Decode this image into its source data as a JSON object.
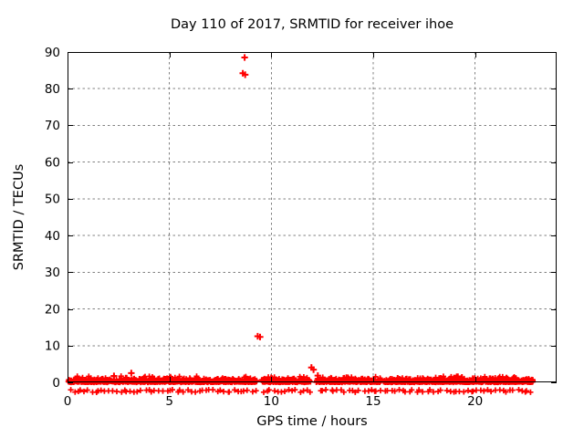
{
  "chart_data": {
    "type": "scatter",
    "title": "Day 110 of 2017, SRMTID for receiver ihoe",
    "xlabel": "GPS time / hours",
    "ylabel": "SRMTID / TECUs",
    "xlim": [
      0,
      24
    ],
    "ylim": [
      0,
      90
    ],
    "xticks": [
      0,
      5,
      10,
      15,
      20
    ],
    "yticks": [
      0,
      10,
      20,
      30,
      40,
      50,
      60,
      70,
      80,
      90
    ],
    "grid": true,
    "legend": "none",
    "marker": "plus",
    "marker_color": "#ff0000",
    "frame_color": "#000000",
    "grid_color": "#808080",
    "series": [
      {
        "name": "SRMTID",
        "outliers": [
          [
            8.69,
            88.5
          ],
          [
            8.6,
            84.2
          ],
          [
            8.72,
            83.8
          ],
          [
            9.33,
            12.55
          ],
          [
            9.45,
            12.35
          ],
          [
            11.97,
            4.05
          ],
          [
            12.07,
            3.45
          ],
          [
            12.28,
            1.85
          ],
          [
            2.28,
            1.75
          ],
          [
            3.13,
            2.5
          ],
          [
            16.2,
            1.1
          ],
          [
            19.35,
            1.35
          ],
          [
            20.75,
            1.0
          ]
        ],
        "noise_band": {
          "description": "dense band of epoch-by-epoch SRMTID values fluctuating about 0 TECU",
          "x_start": 0.03,
          "x_end": 22.85,
          "y_typical": [
            -0.5,
            1.2
          ],
          "y_max_occasional": 1.7,
          "sub_band_y": [
            -2.7,
            -2.0
          ],
          "gaps": [
            [
              9.28,
              9.52
            ],
            [
              11.93,
              12.2
            ],
            [
              15.38,
              15.5
            ]
          ],
          "seed": 42,
          "n_points": 1500,
          "n_sub_points": 130
        }
      }
    ]
  }
}
